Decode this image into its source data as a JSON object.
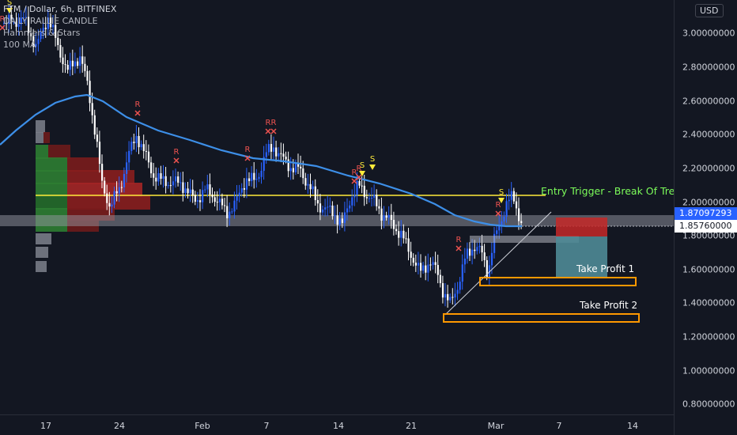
{
  "legend": {
    "symbol_line": "FTM / Dollar, 6h, BITFINEX",
    "indicator_1": "DAILY RALLIE CANDLE",
    "indicator_2": "Hammers & Stars",
    "indicator_3": "100 MA"
  },
  "price_axis": {
    "currency_button": "USD",
    "ticks": [
      "3.00000000",
      "2.80000000",
      "2.60000000",
      "2.40000000",
      "2.20000000",
      "2.00000000",
      "1.80000000",
      "1.60000000",
      "1.40000000",
      "1.20000000",
      "1.00000000",
      "0.80000000"
    ],
    "ma_label": "1.87097293",
    "last_price_label": "1.85760000"
  },
  "time_axis": {
    "ticks": [
      "17",
      "24",
      "Feb",
      "7",
      "14",
      "21",
      "Mar",
      "7",
      "14"
    ]
  },
  "annotations": {
    "entry_trigger": "Entry Trigger - Break Of Tre",
    "take_profit_1": "Take Profit 1",
    "take_profit_2": "Take Profit 2",
    "marker_r": "R",
    "marker_s": "S"
  },
  "colors": {
    "background": "#131722",
    "candle_up": "#2962ff",
    "candle_down": "#ffffff",
    "ma_line": "#3d8fe8",
    "entry_line": "#ffeb3b",
    "take_profit_box": "#ff9800",
    "entry_text": "#7cfc5a",
    "ma_label_bg": "#2962ff",
    "stop_zone": "#c62828",
    "target_zone": "#4f8a96"
  }
}
